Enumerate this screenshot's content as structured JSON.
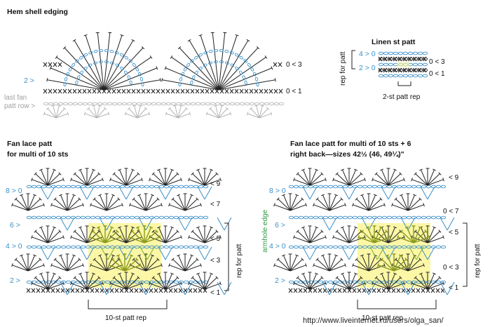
{
  "colors": {
    "black_stitch": "#222222",
    "blue_stitch": "#3a8fc8",
    "grey_stitch": "#b5b5b5",
    "highlight": "#fbf7a6",
    "green_stitch": "#7fae2d",
    "olive_stitch": "#8a9a1a",
    "green_label": "#2e9a44",
    "row_label_blue": "#3a8fc8"
  },
  "hem_shell": {
    "title": "Hem shell edging",
    "left_row_label": "2 >",
    "right_row_labels": [
      "0 < 3",
      "0 < 1"
    ],
    "last_fan_label_1": "last fan",
    "last_fan_label_2": "patt row >"
  },
  "linen": {
    "title": "Linen st patt",
    "left_row_labels": [
      "4 > 0",
      "2 > 0"
    ],
    "right_row_labels": [
      "0 < 3",
      "0 < 1"
    ],
    "rep_label": "rep for patt",
    "st_rep_label": "2-st patt rep"
  },
  "fan_lace": {
    "title_1": "Fan lace patt",
    "title_2": "for multi of 10 sts",
    "left_row_labels": [
      "8 > 0",
      "6 >",
      "4 > 0",
      "2 >"
    ],
    "right_row_labels": [
      "< 9",
      "< 7",
      "< 5",
      "< 3",
      "< 1"
    ],
    "rep_label": "rep for patt",
    "st_rep_label": "10-st patt rep"
  },
  "fan_lace_right": {
    "title_1": "Fan lace patt for multi of 10 sts + 6",
    "title_2": "right back—sizes 42½ (46, 49¼)\"",
    "left_row_labels": [
      "8 > 0",
      "6 >",
      "4 > 0",
      "2 >"
    ],
    "right_row_labels": [
      "< 9",
      "0 < 7",
      "< 5",
      "0 < 3",
      "< 1"
    ],
    "rep_label": "rep for patt",
    "armhole_label": "armhole edge",
    "st_rep_label": "10-st patt rep"
  },
  "watermark": "http://www.liveinternet.ru/users/olga_san/"
}
